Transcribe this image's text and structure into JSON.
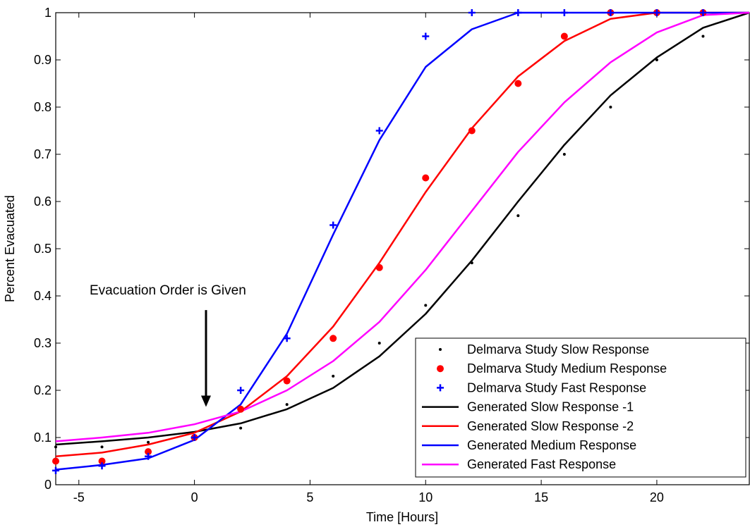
{
  "chart_data": {
    "type": "line",
    "title": "",
    "xlabel": "Time [Hours]",
    "ylabel": "Percent Evacuated",
    "xlim": [
      -6,
      24
    ],
    "ylim": [
      0,
      1
    ],
    "xticks": [
      -5,
      0,
      5,
      10,
      15,
      20
    ],
    "yticks": [
      0,
      0.1,
      0.2,
      0.3,
      0.4,
      0.5,
      0.6,
      0.7,
      0.8,
      0.9,
      1
    ],
    "grid": false,
    "legend_position": "bottom-right",
    "annotation": {
      "text": "Evacuation Order is Given",
      "arrow_x": 0.5,
      "arrow_from_y": 0.37,
      "arrow_to_y": 0.165
    },
    "series": [
      {
        "name": "Delmarva Study Slow Response",
        "kind": "scatter",
        "marker": "dot",
        "color": "#000000",
        "x": [
          -6,
          -4,
          -2,
          0,
          2,
          4,
          6,
          8,
          10,
          12,
          14,
          16,
          18,
          20,
          22
        ],
        "y": [
          0.08,
          0.08,
          0.09,
          0.1,
          0.12,
          0.17,
          0.23,
          0.3,
          0.38,
          0.47,
          0.57,
          0.7,
          0.8,
          0.9,
          0.95
        ]
      },
      {
        "name": "Delmarva Study Medium Response",
        "kind": "scatter",
        "marker": "circle",
        "color": "#ff0000",
        "x": [
          -6,
          -4,
          -2,
          0,
          2,
          4,
          6,
          8,
          10,
          12,
          14,
          16,
          18,
          20,
          22
        ],
        "y": [
          0.05,
          0.05,
          0.07,
          0.1,
          0.16,
          0.22,
          0.31,
          0.46,
          0.65,
          0.75,
          0.85,
          0.95,
          1.0,
          1.0,
          1.0
        ]
      },
      {
        "name": "Delmarva Study Fast Response",
        "kind": "scatter",
        "marker": "plus",
        "color": "#0000ff",
        "x": [
          -6,
          -4,
          -2,
          0,
          2,
          4,
          6,
          8,
          10,
          12,
          14,
          16,
          18,
          20,
          22
        ],
        "y": [
          0.03,
          0.04,
          0.06,
          0.1,
          0.2,
          0.31,
          0.55,
          0.75,
          0.95,
          1.0,
          1.0,
          1.0,
          1.0,
          1.0,
          1.0
        ]
      },
      {
        "name": "Generated Slow Response -1",
        "kind": "line",
        "color": "#000000",
        "x": [
          -6,
          -4,
          -2,
          0,
          2,
          4,
          6,
          8,
          10,
          12,
          14,
          16,
          18,
          20,
          22,
          24
        ],
        "y": [
          0.085,
          0.092,
          0.1,
          0.112,
          0.13,
          0.16,
          0.205,
          0.272,
          0.362,
          0.475,
          0.6,
          0.72,
          0.825,
          0.905,
          0.968,
          1.0
        ]
      },
      {
        "name": "Generated Slow Response -2",
        "kind": "line",
        "color": "#ff0000",
        "x": [
          -6,
          -4,
          -2,
          0,
          2,
          4,
          6,
          8,
          10,
          12,
          14,
          16,
          18,
          20,
          22,
          24
        ],
        "y": [
          0.06,
          0.068,
          0.085,
          0.11,
          0.155,
          0.23,
          0.335,
          0.47,
          0.62,
          0.755,
          0.865,
          0.94,
          0.987,
          1.0,
          1.0,
          1.0
        ]
      },
      {
        "name": "Generated Medium Response",
        "kind": "line",
        "color": "#0000ff",
        "x": [
          -6,
          -4,
          -2,
          0,
          2,
          4,
          6,
          8,
          10,
          12,
          14,
          16,
          18,
          20,
          22,
          24
        ],
        "y": [
          0.032,
          0.042,
          0.056,
          0.095,
          0.17,
          0.32,
          0.53,
          0.73,
          0.885,
          0.965,
          1.0,
          1.0,
          1.0,
          1.0,
          1.0,
          1.0
        ]
      },
      {
        "name": "Generated Fast Response",
        "kind": "line",
        "color": "#ff00ff",
        "x": [
          -6,
          -4,
          -2,
          0,
          2,
          4,
          6,
          8,
          10,
          12,
          14,
          16,
          18,
          20,
          22,
          24
        ],
        "y": [
          0.092,
          0.1,
          0.11,
          0.128,
          0.155,
          0.2,
          0.262,
          0.345,
          0.455,
          0.58,
          0.705,
          0.81,
          0.895,
          0.958,
          0.995,
          1.0
        ]
      }
    ]
  }
}
